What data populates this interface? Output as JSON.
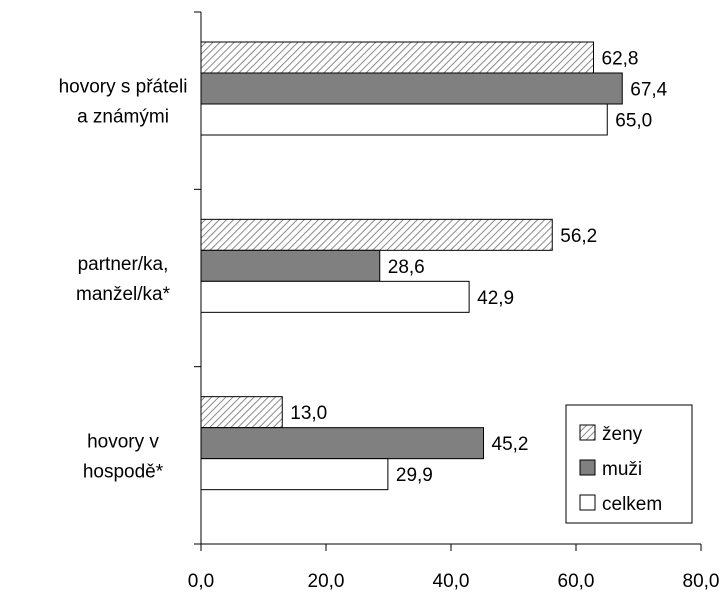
{
  "chart_data": {
    "type": "bar",
    "orientation": "horizontal",
    "categories": [
      [
        "hovory s přáteli",
        "a známými"
      ],
      [
        "partner/ka,",
        "manžel/ka*"
      ],
      [
        "hovory v",
        "hospodě*"
      ]
    ],
    "series": [
      {
        "name": "ženy",
        "values": [
          62.8,
          56.2,
          13.0
        ],
        "value_labels": [
          "62,8",
          "56,2",
          "13,0"
        ],
        "color": "#ffffff",
        "pattern": "diagonal-hatch"
      },
      {
        "name": "muži",
        "values": [
          67.4,
          28.6,
          45.2
        ],
        "value_labels": [
          "67,4",
          "28,6",
          "45,2"
        ],
        "color": "#808080",
        "pattern": "solid"
      },
      {
        "name": "celkem",
        "values": [
          65.0,
          42.9,
          29.9
        ],
        "value_labels": [
          "65,0",
          "42,9",
          "29,9"
        ],
        "color": "#ffffff",
        "pattern": "solid"
      }
    ],
    "xlim": [
      0,
      80
    ],
    "xticks": [
      0,
      20,
      40,
      60,
      80
    ],
    "xtick_labels": [
      "0,0",
      "20,0",
      "40,0",
      "60,0",
      "80,0"
    ],
    "title": "",
    "xlabel": "",
    "ylabel": "",
    "grid": false,
    "legend": {
      "position": "bottom-right",
      "entries": [
        "ženy",
        "muži",
        "celkem"
      ]
    }
  }
}
